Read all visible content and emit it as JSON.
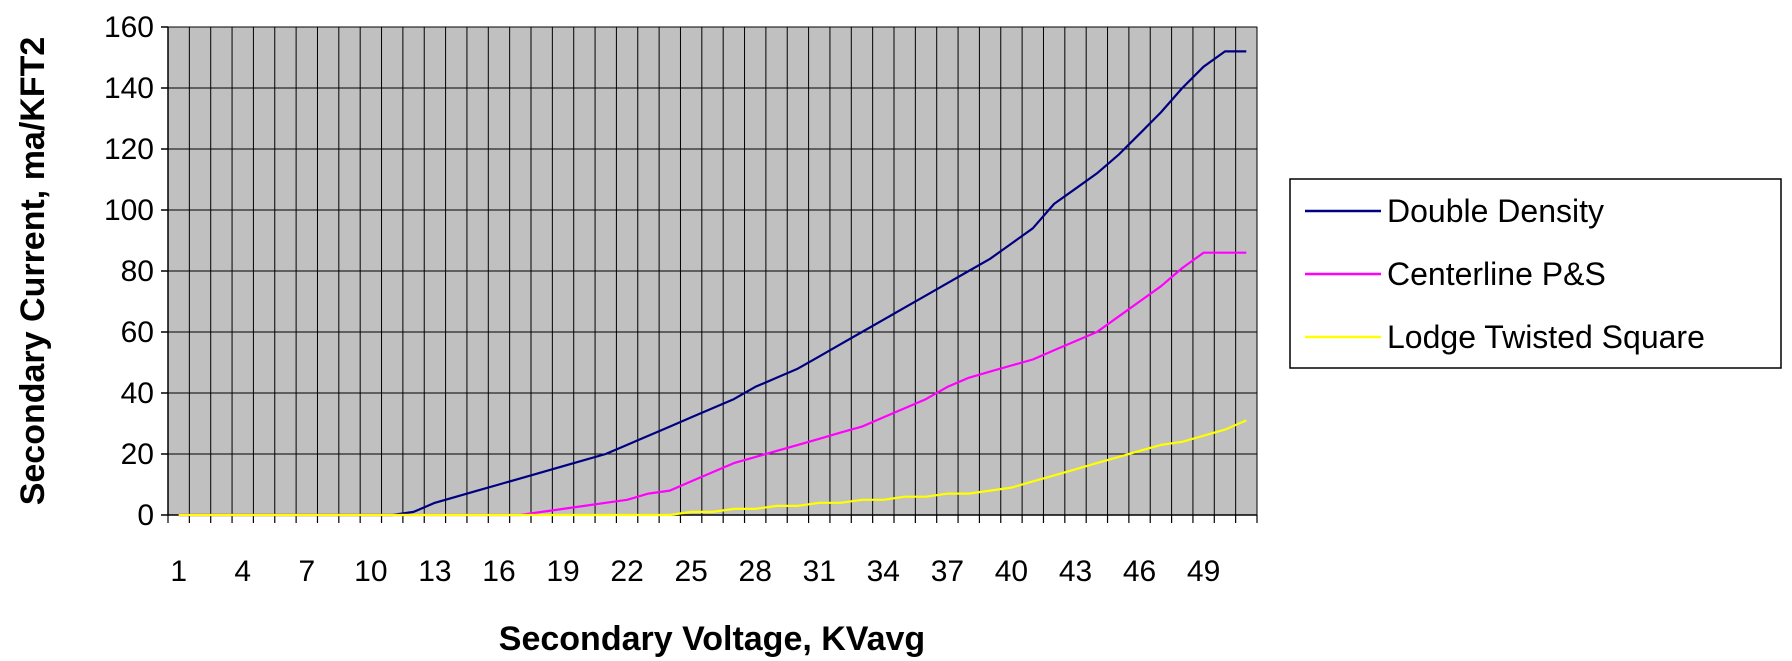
{
  "chart_data": {
    "type": "line",
    "title": "",
    "xlabel": "Secondary Voltage, KVavg",
    "ylabel": "Secondary Current, ma/KFT2",
    "x": [
      1,
      2,
      3,
      4,
      5,
      6,
      7,
      8,
      9,
      10,
      11,
      12,
      13,
      14,
      15,
      16,
      17,
      18,
      19,
      20,
      21,
      22,
      23,
      24,
      25,
      26,
      27,
      28,
      29,
      30,
      31,
      32,
      33,
      34,
      35,
      36,
      37,
      38,
      39,
      40,
      41,
      42,
      43,
      44,
      45,
      46,
      47,
      48,
      49,
      50,
      51
    ],
    "x_tick_labels": [
      "1",
      "4",
      "7",
      "10",
      "13",
      "16",
      "19",
      "22",
      "25",
      "28",
      "31",
      "34",
      "37",
      "40",
      "43",
      "46",
      "49"
    ],
    "ylim": [
      0,
      160
    ],
    "y_ticks": [
      0,
      20,
      40,
      60,
      80,
      100,
      120,
      140,
      160
    ],
    "grid": true,
    "plot_background": "#C0C0C0",
    "legend_position": "right",
    "series": [
      {
        "name": "Double Density",
        "color": "#000080",
        "values": [
          0,
          0,
          0,
          0,
          0,
          0,
          0,
          0,
          0,
          0,
          0,
          1,
          4,
          6,
          8,
          10,
          12,
          14,
          16,
          18,
          20,
          23,
          26,
          29,
          32,
          35,
          38,
          42,
          45,
          48,
          52,
          56,
          60,
          64,
          68,
          72,
          76,
          80,
          84,
          89,
          94,
          102,
          107,
          112,
          118,
          125,
          132,
          140,
          147,
          152,
          152
        ]
      },
      {
        "name": "Centerline P&S",
        "color": "#FF00FF",
        "values": [
          0,
          0,
          0,
          0,
          0,
          0,
          0,
          0,
          0,
          0,
          0,
          0,
          0,
          0,
          0,
          0,
          0,
          1,
          2,
          3,
          4,
          5,
          7,
          8,
          11,
          14,
          17,
          19,
          21,
          23,
          25,
          27,
          29,
          32,
          35,
          38,
          42,
          45,
          47,
          49,
          51,
          54,
          57,
          60,
          65,
          70,
          75,
          81,
          86,
          86,
          86
        ]
      },
      {
        "name": "Lodge Twisted Square",
        "color": "#FFFF00",
        "values": [
          0,
          0,
          0,
          0,
          0,
          0,
          0,
          0,
          0,
          0,
          0,
          0,
          0,
          0,
          0,
          0,
          0,
          0,
          0,
          0,
          0,
          0,
          0,
          0,
          1,
          1,
          2,
          2,
          3,
          3,
          4,
          4,
          5,
          5,
          6,
          6,
          7,
          7,
          8,
          9,
          11,
          13,
          15,
          17,
          19,
          21,
          23,
          24,
          26,
          28,
          31
        ]
      }
    ]
  }
}
